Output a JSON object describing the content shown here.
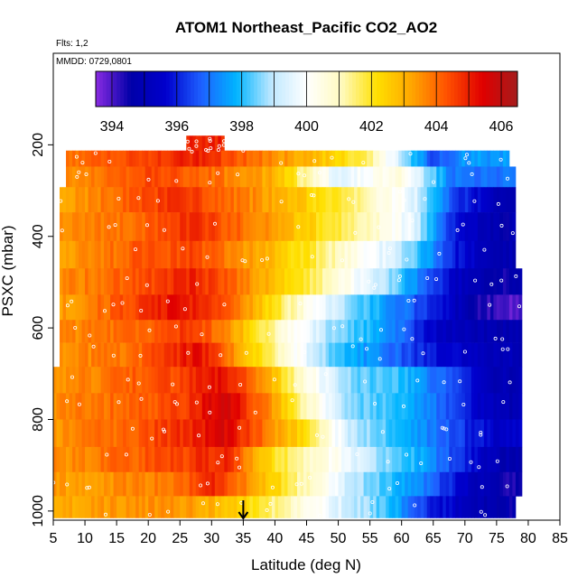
{
  "chart_data": {
    "type": "heatmap",
    "title": "ATOM1 Northeast_Pacific CO2_AO2",
    "annotations": [
      "Flts: 1,2",
      "MMDD: 0729,0801"
    ],
    "xlabel": "Latitude (deg N)",
    "ylabel": "PSXC (mbar)",
    "xlim": [
      5,
      85
    ],
    "ylim": [
      1020,
      0
    ],
    "y_reversed": true,
    "xticks": [
      5,
      10,
      15,
      20,
      25,
      30,
      35,
      40,
      45,
      50,
      55,
      60,
      65,
      70,
      75,
      80,
      85
    ],
    "yticks": [
      200,
      400,
      600,
      800,
      1000
    ],
    "colorbar": {
      "range": [
        393.5,
        406.5
      ],
      "ticks": [
        394,
        396,
        398,
        400,
        402,
        404,
        406
      ],
      "colors": [
        "#8a2be2",
        "#0000a8",
        "#0000cd",
        "#1e60ff",
        "#00b4ff",
        "#bfe8ff",
        "#ffffff",
        "#fffabf",
        "#ffe000",
        "#ffa500",
        "#ff5000",
        "#e00000",
        "#a51c1c"
      ],
      "position": "top"
    },
    "marker": {
      "x": 35,
      "label": "arrow"
    },
    "levels": [
      {
        "p": 200,
        "x0": 26,
        "x1": 32,
        "values": [
          [
            26,
            405.0
          ],
          [
            32,
            405.0
          ]
        ]
      },
      {
        "p": 225,
        "x0": 7,
        "x1": 77,
        "values": [
          [
            7,
            403.8
          ],
          [
            20,
            404.5
          ],
          [
            27,
            405.0
          ],
          [
            35,
            404.2
          ],
          [
            45,
            403.0
          ],
          [
            55,
            401.5
          ],
          [
            60,
            399.0
          ],
          [
            65,
            396.5
          ],
          [
            70,
            397.5
          ],
          [
            75,
            397.5
          ]
        ]
      },
      {
        "p": 270,
        "x0": 7,
        "x1": 78,
        "values": [
          [
            7,
            403.5
          ],
          [
            20,
            404.5
          ],
          [
            30,
            404.0
          ],
          [
            40,
            403.0
          ],
          [
            50,
            399.5
          ],
          [
            60,
            400.5
          ],
          [
            68,
            397.0
          ],
          [
            75,
            397.0
          ]
        ]
      },
      {
        "p": 315,
        "x0": 6,
        "x1": 78,
        "values": [
          [
            6,
            403.2
          ],
          [
            18,
            404.3
          ],
          [
            25,
            404.8
          ],
          [
            35,
            403.8
          ],
          [
            45,
            402.5
          ],
          [
            55,
            401.0
          ],
          [
            62,
            399.5
          ],
          [
            68,
            396.5
          ],
          [
            75,
            395.0
          ]
        ]
      },
      {
        "p": 380,
        "x0": 6,
        "x1": 78,
        "values": [
          [
            6,
            403.5
          ],
          [
            18,
            404.0
          ],
          [
            27,
            404.8
          ],
          [
            35,
            404.0
          ],
          [
            45,
            402.5
          ],
          [
            55,
            401.0
          ],
          [
            62,
            399.5
          ],
          [
            68,
            396.0
          ],
          [
            75,
            394.8
          ]
        ]
      },
      {
        "p": 440,
        "x0": 6,
        "x1": 78,
        "values": [
          [
            6,
            403.3
          ],
          [
            18,
            404.2
          ],
          [
            27,
            404.5
          ],
          [
            35,
            403.5
          ],
          [
            45,
            402.0
          ],
          [
            55,
            400.0
          ],
          [
            62,
            398.5
          ],
          [
            68,
            396.0
          ],
          [
            75,
            394.8
          ]
        ]
      },
      {
        "p": 500,
        "x0": 6,
        "x1": 79,
        "values": [
          [
            6,
            403.5
          ],
          [
            18,
            404.3
          ],
          [
            27,
            405.0
          ],
          [
            35,
            403.8
          ],
          [
            45,
            401.8
          ],
          [
            55,
            399.5
          ],
          [
            62,
            397.5
          ],
          [
            68,
            395.5
          ],
          [
            75,
            394.5
          ]
        ]
      },
      {
        "p": 555,
        "x0": 6,
        "x1": 79,
        "values": [
          [
            6,
            403.3
          ],
          [
            18,
            404.5
          ],
          [
            24,
            405.3
          ],
          [
            32,
            404.5
          ],
          [
            40,
            402.0
          ],
          [
            50,
            399.0
          ],
          [
            58,
            397.5
          ],
          [
            65,
            396.0
          ],
          [
            72,
            394.5
          ],
          [
            76,
            394.0
          ]
        ]
      },
      {
        "p": 610,
        "x0": 6,
        "x1": 79,
        "values": [
          [
            6,
            403.5
          ],
          [
            18,
            404.0
          ],
          [
            27,
            404.8
          ],
          [
            35,
            402.8
          ],
          [
            42,
            400.5
          ],
          [
            50,
            398.5
          ],
          [
            58,
            397.5
          ],
          [
            65,
            395.5
          ],
          [
            75,
            394.8
          ]
        ]
      },
      {
        "p": 655,
        "x0": 6,
        "x1": 79,
        "values": [
          [
            6,
            403.5
          ],
          [
            18,
            404.0
          ],
          [
            28,
            405.3
          ],
          [
            35,
            403.0
          ],
          [
            42,
            400.5
          ],
          [
            50,
            398.0
          ],
          [
            58,
            397.0
          ],
          [
            65,
            395.8
          ],
          [
            75,
            395.0
          ]
        ]
      },
      {
        "p": 715,
        "x0": 5,
        "x1": 79,
        "values": [
          [
            5,
            403.3
          ],
          [
            15,
            404.0
          ],
          [
            25,
            404.5
          ],
          [
            32,
            405.3
          ],
          [
            38,
            403.5
          ],
          [
            45,
            400.5
          ],
          [
            52,
            398.5
          ],
          [
            60,
            398.0
          ],
          [
            68,
            396.5
          ],
          [
            75,
            395.0
          ]
        ]
      },
      {
        "p": 770,
        "x0": 5,
        "x1": 79,
        "values": [
          [
            5,
            403.5
          ],
          [
            15,
            404.0
          ],
          [
            25,
            404.5
          ],
          [
            32,
            405.8
          ],
          [
            38,
            404.0
          ],
          [
            45,
            401.0
          ],
          [
            52,
            398.5
          ],
          [
            60,
            398.0
          ],
          [
            68,
            396.5
          ],
          [
            75,
            395.0
          ]
        ]
      },
      {
        "p": 830,
        "x0": 5,
        "x1": 79,
        "values": [
          [
            5,
            403.5
          ],
          [
            15,
            404.0
          ],
          [
            25,
            404.8
          ],
          [
            32,
            405.5
          ],
          [
            38,
            404.0
          ],
          [
            45,
            402.0
          ],
          [
            52,
            399.0
          ],
          [
            60,
            398.0
          ],
          [
            68,
            396.5
          ],
          [
            75,
            395.5
          ]
        ]
      },
      {
        "p": 890,
        "x0": 5,
        "x1": 79,
        "values": [
          [
            5,
            403.5
          ],
          [
            15,
            404.0
          ],
          [
            25,
            404.5
          ],
          [
            32,
            405.0
          ],
          [
            40,
            402.0
          ],
          [
            48,
            400.5
          ],
          [
            55,
            399.0
          ],
          [
            62,
            398.0
          ],
          [
            70,
            396.0
          ],
          [
            76,
            394.8
          ]
        ]
      },
      {
        "p": 940,
        "x0": 5,
        "x1": 79,
        "values": [
          [
            5,
            403.3
          ],
          [
            15,
            403.5
          ],
          [
            25,
            404.0
          ],
          [
            30,
            405.0
          ],
          [
            38,
            403.0
          ],
          [
            45,
            401.0
          ],
          [
            52,
            399.0
          ],
          [
            62,
            397.5
          ],
          [
            70,
            395.5
          ],
          [
            76,
            394.5
          ]
        ]
      },
      {
        "p": 995,
        "x0": 5,
        "x1": 78,
        "values": [
          [
            5,
            403.0
          ],
          [
            15,
            403.5
          ],
          [
            25,
            403.5
          ],
          [
            35,
            402.5
          ],
          [
            42,
            401.0
          ],
          [
            50,
            399.5
          ],
          [
            58,
            398.0
          ],
          [
            65,
            396.0
          ],
          [
            72,
            395.0
          ],
          [
            78,
            394.5
          ]
        ]
      }
    ]
  }
}
